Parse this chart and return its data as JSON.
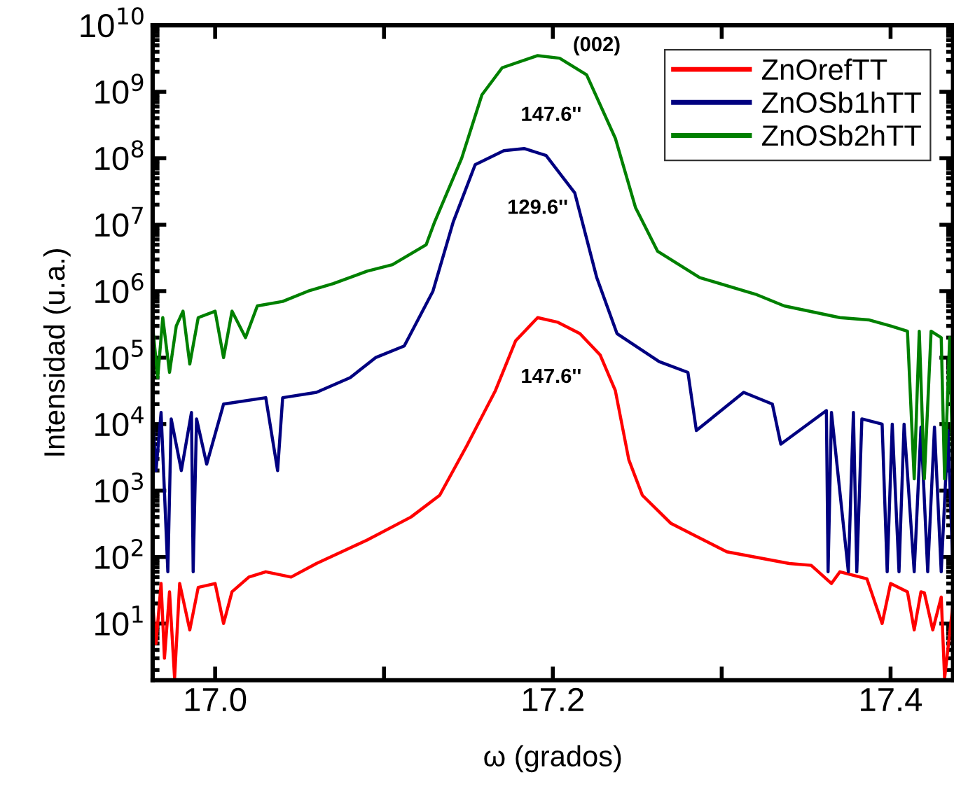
{
  "chart_data": {
    "type": "line",
    "xlabel": "ω (grados)",
    "ylabel": "Intensidad (u.a.)",
    "log": "y",
    "legend": "top right",
    "grid": false,
    "marker": "none",
    "line_style": "solid",
    "xlim": [
      16.963,
      17.437
    ],
    "xticks": [
      {
        "value": 17.0,
        "label": "17.0"
      },
      {
        "value": 17.1,
        "label": null
      },
      {
        "value": 17.2,
        "label": "17.2"
      },
      {
        "value": 17.3,
        "label": null
      },
      {
        "value": 17.4,
        "label": "17.4"
      }
    ],
    "ylim": [
      1.4,
      10000000000
    ],
    "yticks": [
      {
        "value": 10,
        "label": "10$^{1}$"
      },
      {
        "value": 100,
        "label": "10$^{2}$"
      },
      {
        "value": 1000,
        "label": "10$^{3}$"
      },
      {
        "value": 10000,
        "label": "10$^{4}$"
      },
      {
        "value": 100000,
        "label": "10$^{5}$"
      },
      {
        "value": 1000000,
        "label": "10$^{6}$"
      },
      {
        "value": 10000000,
        "label": "10$^{7}$"
      },
      {
        "value": 100000000,
        "label": "10$^{8}$"
      },
      {
        "value": 1000000000,
        "label": "10$^{9}$"
      },
      {
        "value": 10000000000,
        "label": "10$^{10}$"
      }
    ],
    "annotations": [
      "(002)",
      "147.6''",
      "129.6''",
      "147.6''"
    ],
    "series": [
      {
        "name": "ZnOrefTT",
        "color": "#ff0000",
        "x": [
          16.963,
          16.965,
          16.968,
          16.97,
          16.973,
          16.976,
          16.979,
          16.985,
          16.99,
          17.0,
          17.005,
          17.01,
          17.02,
          17.03,
          17.045,
          17.06,
          17.075,
          17.09,
          17.116,
          17.133,
          17.149,
          17.166,
          17.178,
          17.191,
          17.203,
          17.216,
          17.228,
          17.237,
          17.245,
          17.253,
          17.27,
          17.303,
          17.34,
          17.353,
          17.365,
          17.37,
          17.386,
          17.395,
          17.4,
          17.41,
          17.414,
          17.418,
          17.42,
          17.425,
          17.43,
          17.432,
          17.437
        ],
        "values": [
          20,
          5,
          40,
          3,
          30,
          1.5,
          40,
          8,
          35,
          40,
          10,
          30,
          50,
          60,
          50,
          80,
          120,
          180,
          400,
          850,
          4700,
          32000,
          180000,
          400000,
          340000,
          230000,
          110000,
          32000,
          2900,
          850,
          320,
          120,
          80,
          75,
          40,
          60,
          47,
          10,
          40,
          30,
          8,
          30,
          29,
          8,
          25,
          1.5,
          20
        ]
      },
      {
        "name": "ZnOSb1hTT",
        "color": "#000080",
        "x": [
          16.963,
          16.965,
          16.968,
          16.972,
          16.974,
          16.98,
          16.986,
          16.987,
          16.989,
          16.995,
          17.005,
          17.03,
          17.037,
          17.04,
          17.06,
          17.08,
          17.095,
          17.112,
          17.129,
          17.141,
          17.154,
          17.171,
          17.183,
          17.196,
          17.213,
          17.226,
          17.238,
          17.263,
          17.28,
          17.285,
          17.313,
          17.33,
          17.335,
          17.362,
          17.363,
          17.365,
          17.375,
          17.378,
          17.38,
          17.383,
          17.395,
          17.398,
          17.401,
          17.405,
          17.408,
          17.414,
          17.418,
          17.422,
          17.426,
          17.43,
          17.434,
          17.437
        ],
        "values": [
          13000,
          2000,
          15000,
          60,
          12000,
          2000,
          15000,
          60,
          12000,
          2500,
          20000,
          25000,
          2000,
          25000,
          30000,
          50000,
          100000,
          150000,
          1000000,
          11000000,
          80000000,
          130000000,
          140000000,
          110000000,
          30000000,
          1600000,
          230000,
          87000,
          60000,
          8000,
          30000,
          20000,
          5000,
          16000,
          60,
          15000,
          60,
          15000,
          60,
          12000,
          10000,
          60,
          10000,
          60,
          10000,
          60,
          9000,
          60,
          9000,
          60,
          8000,
          60
        ]
      },
      {
        "name": "ZnOSb2hTT",
        "color": "#008000",
        "x": [
          16.963,
          16.966,
          16.969,
          16.973,
          16.977,
          16.981,
          16.985,
          16.99,
          17.0,
          17.005,
          17.01,
          17.018,
          17.025,
          17.04,
          17.055,
          17.07,
          17.09,
          17.105,
          17.125,
          17.13,
          17.146,
          17.158,
          17.17,
          17.191,
          17.204,
          17.22,
          17.237,
          17.249,
          17.262,
          17.287,
          17.32,
          17.337,
          17.37,
          17.387,
          17.4,
          17.41,
          17.414,
          17.417,
          17.42,
          17.424,
          17.43,
          17.432,
          17.435,
          17.437
        ],
        "values": [
          300000,
          50000,
          400000,
          60000,
          300000,
          500000,
          80000,
          400000,
          500000,
          100000,
          500000,
          200000,
          600000,
          700000,
          1000000,
          1300000,
          2000000,
          2500000,
          5000000,
          11000000,
          100000000,
          900000000,
          2300000000,
          3500000000,
          3200000000,
          1800000000,
          200000000,
          18000000,
          4000000,
          1600000,
          900000,
          600000,
          400000,
          370000,
          300000,
          250000,
          1500,
          250000,
          1500,
          250000,
          200000,
          1500,
          200000,
          1500
        ]
      }
    ]
  }
}
